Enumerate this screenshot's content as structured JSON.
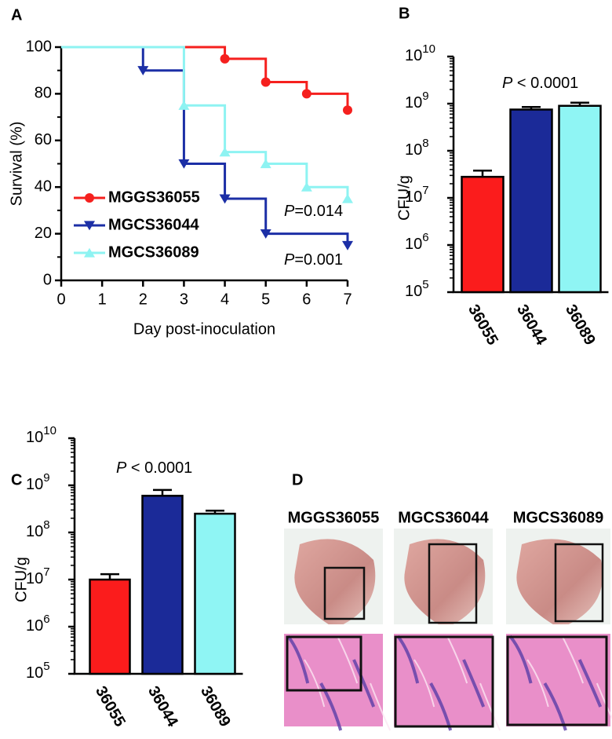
{
  "chart_data": [
    {
      "type": "survival",
      "panel_label": "A",
      "x_label": "Day post-inoculation",
      "y_label": "Survival (%)",
      "x": [
        0,
        1,
        2,
        3,
        4,
        5,
        6,
        7
      ],
      "series": [
        {
          "name": "MGGS36055",
          "color": "#f5201e",
          "marker": "circle",
          "values": [
            100,
            100,
            100,
            100,
            95,
            85,
            80,
            73
          ]
        },
        {
          "name": "MGCS36044",
          "color": "#1c2fa6",
          "marker": "triangle-down",
          "values": [
            100,
            100,
            90,
            50,
            35,
            20,
            20,
            15
          ]
        },
        {
          "name": "MGCS36089",
          "color": "#8ef3f2",
          "marker": "triangle-up",
          "values": [
            100,
            100,
            100,
            75,
            55,
            50,
            40,
            35
          ]
        }
      ],
      "annotations": [
        "P=0.014",
        "P=0.001"
      ],
      "xlim": [
        0,
        7
      ],
      "xticks": [
        0,
        1,
        2,
        3,
        4,
        5,
        6,
        7
      ],
      "ylim": [
        0,
        100
      ],
      "yticks": [
        0,
        20,
        40,
        60,
        80,
        100
      ],
      "legend": "lower-left"
    },
    {
      "type": "bar",
      "panel_label": "B",
      "y_label": "CFU/g",
      "log_scale": true,
      "categories": [
        "36055",
        "36044",
        "36089"
      ],
      "values": [
        28000000,
        750000000,
        900000000
      ],
      "errors": [
        10000000,
        100000000,
        150000000
      ],
      "colors": [
        "#fb1c1c",
        "#1b2a98",
        "#8ff5f4"
      ],
      "annotations": [
        "P < 0.0001"
      ],
      "ylim": [
        100000,
        10000000000
      ],
      "yticks": [
        {
          "value": 100000,
          "label": "10",
          "exponent": "5"
        },
        {
          "value": 1000000,
          "label": "10",
          "exponent": "6"
        },
        {
          "value": 10000000,
          "label": "10",
          "exponent": "7"
        },
        {
          "value": 100000000,
          "label": "10",
          "exponent": "8"
        },
        {
          "value": 1000000000,
          "label": "10",
          "exponent": "9"
        },
        {
          "value": 10000000000,
          "label": "10",
          "exponent": "10"
        }
      ]
    },
    {
      "type": "bar",
      "panel_label": "C",
      "y_label": "CFU/g",
      "log_scale": true,
      "categories": [
        "36055",
        "36044",
        "36089"
      ],
      "values": [
        10000000,
        600000000,
        250000000
      ],
      "errors": [
        3000000,
        200000000,
        40000000
      ],
      "colors": [
        "#fb1c1c",
        "#1b2a98",
        "#8ff5f4"
      ],
      "annotations": [
        "P < 0.0001"
      ],
      "ylim": [
        100000,
        10000000000
      ],
      "yticks": [
        {
          "value": 100000,
          "label": "10",
          "exponent": "5"
        },
        {
          "value": 1000000,
          "label": "10",
          "exponent": "6"
        },
        {
          "value": 10000000,
          "label": "10",
          "exponent": "7"
        },
        {
          "value": 100000000,
          "label": "10",
          "exponent": "8"
        },
        {
          "value": 1000000000,
          "label": "10",
          "exponent": "9"
        },
        {
          "value": 10000000000,
          "label": "10",
          "exponent": "10"
        }
      ]
    },
    {
      "type": "images",
      "panel_label": "D",
      "titles": [
        "MGGS36055",
        "MGCS36044",
        "MGCS36089"
      ]
    }
  ]
}
